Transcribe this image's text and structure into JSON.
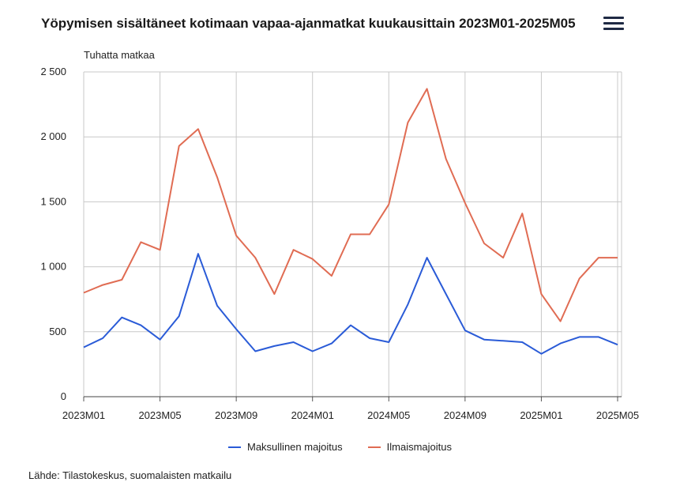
{
  "header": {
    "title": "Yöpymisen sisältäneet kotimaan vapaa-ajanmatkat kuukausittain 2023M01-2025M05",
    "menu_icon": "hamburger-menu-icon"
  },
  "source": "Lähde: Tilastokeskus, suomalaisten matkailu",
  "chart_data": {
    "type": "line",
    "title": "Yöpymisen sisältäneet kotimaan vapaa-ajanmatkat kuukausittain 2023M01-2025M05",
    "ylabel": "Tuhatta matkaa",
    "xlabel": "",
    "ylim": [
      0,
      2500
    ],
    "yticks": [
      0,
      500,
      1000,
      1500,
      2000,
      2500
    ],
    "ytick_labels": [
      "0",
      "500",
      "1 000",
      "1 500",
      "2 000",
      "2 500"
    ],
    "grid": true,
    "legend_position": "bottom",
    "categories": [
      "2023M01",
      "2023M02",
      "2023M03",
      "2023M04",
      "2023M05",
      "2023M06",
      "2023M07",
      "2023M08",
      "2023M09",
      "2023M10",
      "2023M11",
      "2023M12",
      "2024M01",
      "2024M02",
      "2024M03",
      "2024M04",
      "2024M05",
      "2024M06",
      "2024M07",
      "2024M08",
      "2024M09",
      "2024M10",
      "2024M11",
      "2024M12",
      "2025M01",
      "2025M02",
      "2025M03",
      "2025M04",
      "2025M05"
    ],
    "xtick_labels": [
      "2023M01",
      "2023M05",
      "2023M09",
      "2024M01",
      "2024M05",
      "2024M09",
      "2025M01",
      "2025M05"
    ],
    "series": [
      {
        "name": "Maksullinen majoitus",
        "color": "#2a5bd7",
        "values": [
          380,
          450,
          610,
          550,
          440,
          620,
          1100,
          700,
          520,
          350,
          390,
          420,
          350,
          410,
          550,
          450,
          420,
          710,
          1070,
          790,
          510,
          440,
          430,
          420,
          330,
          410,
          460,
          460,
          400
        ]
      },
      {
        "name": "Ilmaismajoitus",
        "color": "#e06c53",
        "values": [
          800,
          860,
          900,
          1190,
          1130,
          1930,
          2060,
          1690,
          1240,
          1070,
          790,
          1130,
          1060,
          930,
          1250,
          1250,
          1480,
          2110,
          2370,
          1830,
          1490,
          1180,
          1070,
          1410,
          790,
          580,
          910,
          1070,
          1070
        ]
      }
    ]
  }
}
